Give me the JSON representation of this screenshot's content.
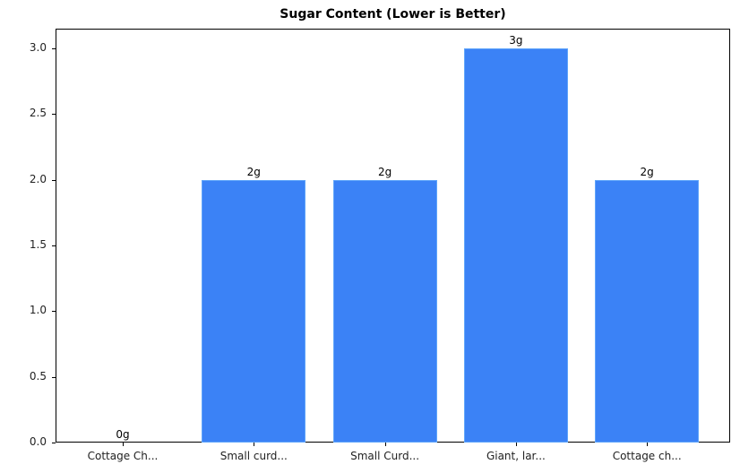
{
  "chart_data": {
    "type": "bar",
    "title": "Sugar Content (Lower is Better)",
    "xlabel": "",
    "ylabel": "",
    "categories": [
      "Cottage Ch...",
      "Small curd...",
      "Small Curd...",
      "Giant, lar...",
      "Cottage ch..."
    ],
    "values": [
      0,
      2,
      2,
      3,
      2
    ],
    "value_labels": [
      "0g",
      "2g",
      "2g",
      "3g",
      "2g"
    ],
    "ylim": [
      0,
      3.15
    ],
    "yticks": [
      "0.0",
      "0.5",
      "1.0",
      "1.5",
      "2.0",
      "2.5",
      "3.0"
    ],
    "grid": false,
    "legend": null,
    "bar_color": "#3b82f6",
    "bar_edge_color": "#60a5fa"
  }
}
